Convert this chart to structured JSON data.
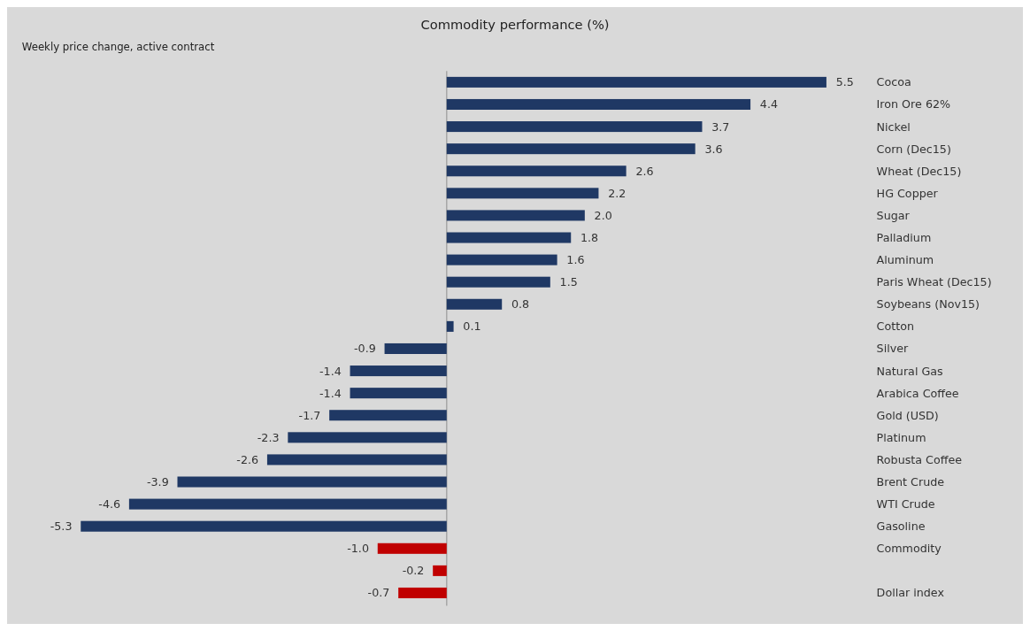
{
  "chart_data": {
    "type": "bar",
    "orientation": "horizontal",
    "title": "Commodity performance (%)",
    "subtitle": "Weekly price change, active contract",
    "categories": [
      "Cocoa",
      "Iron Ore 62%",
      "Nickel",
      "Corn (Dec15)",
      "Wheat (Dec15)",
      "HG Copper",
      "Sugar",
      "Palladium",
      "Aluminum",
      "Paris Wheat (Dec15)",
      "Soybeans (Nov15)",
      "Cotton",
      "Silver",
      "Natural Gas",
      "Arabica Coffee",
      "Gold (USD)",
      "Platinum",
      "Robusta Coffee",
      "Brent Crude",
      "WTI Crude",
      "Gasoline",
      "Commodity",
      null,
      "Dollar index"
    ],
    "values": [
      5.5,
      4.4,
      3.7,
      3.6,
      2.6,
      2.2,
      2.0,
      1.8,
      1.6,
      1.5,
      0.8,
      0.1,
      -0.9,
      -1.4,
      -1.4,
      -1.7,
      -2.3,
      -2.6,
      -3.9,
      -4.6,
      -5.3,
      -1.0,
      -0.2,
      -0.7
    ],
    "value_labels": [
      "5.5",
      "4.4",
      "3.7",
      "3.6",
      "2.6",
      "2.2",
      "2.0",
      "1.8",
      "1.6",
      "1.5",
      "0.8",
      "0.1",
      "-0.9",
      "-1.4",
      "-1.4",
      "-1.7",
      "-2.3",
      "-2.6",
      "-3.9",
      "-4.6",
      "-5.3",
      "-1.0",
      "-0.2",
      "-0.7"
    ],
    "colors": [
      "#1f3864",
      "#1f3864",
      "#1f3864",
      "#1f3864",
      "#1f3864",
      "#1f3864",
      "#1f3864",
      "#1f3864",
      "#1f3864",
      "#1f3864",
      "#1f3864",
      "#1f3864",
      "#1f3864",
      "#1f3864",
      "#1f3864",
      "#1f3864",
      "#1f3864",
      "#1f3864",
      "#1f3864",
      "#1f3864",
      "#1f3864",
      "#c00000",
      "#c00000",
      "#c00000"
    ]
  }
}
